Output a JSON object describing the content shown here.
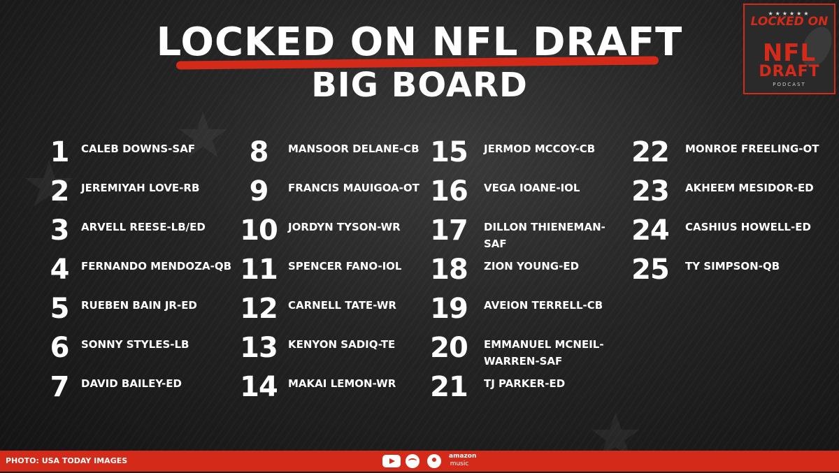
{
  "header": {
    "title_line1": "LOCKED ON NFL DRAFT",
    "title_line2": "BIG BOARD"
  },
  "logo": {
    "stars": "★★★★★★",
    "locked": "LOCKED ON",
    "nfl": "NFL",
    "draft": "DRAFT",
    "podcast": "PODCAST"
  },
  "board": [
    {
      "rank": "1",
      "name": "CALEB DOWNS-SAF"
    },
    {
      "rank": "2",
      "name": "JEREMIYAH LOVE-RB"
    },
    {
      "rank": "3",
      "name": "ARVELL REESE-LB/ED"
    },
    {
      "rank": "4",
      "name": "FERNANDO MENDOZA-QB"
    },
    {
      "rank": "5",
      "name": "RUEBEN BAIN JR-ED"
    },
    {
      "rank": "6",
      "name": "SONNY STYLES-LB"
    },
    {
      "rank": "7",
      "name": "DAVID BAILEY-ED"
    },
    {
      "rank": "8",
      "name": "MANSOOR DELANE-CB"
    },
    {
      "rank": "9",
      "name": "FRANCIS MAUIGOA-OT"
    },
    {
      "rank": "10",
      "name": "JORDYN TYSON-WR"
    },
    {
      "rank": "11",
      "name": "SPENCER FANO-IOL"
    },
    {
      "rank": "12",
      "name": "CARNELL TATE-WR"
    },
    {
      "rank": "13",
      "name": "KENYON SADIQ-TE"
    },
    {
      "rank": "14",
      "name": "MAKAI LEMON-WR"
    },
    {
      "rank": "15",
      "name": "JERMOD MCCOY-CB"
    },
    {
      "rank": "16",
      "name": "VEGA IOANE-IOL"
    },
    {
      "rank": "17",
      "name": "DILLON THIENEMAN-SAF"
    },
    {
      "rank": "18",
      "name": "ZION YOUNG-ED"
    },
    {
      "rank": "19",
      "name": "AVEION TERRELL-CB"
    },
    {
      "rank": "20",
      "name": "EMMANUEL MCNEIL-WARREN-SAF"
    },
    {
      "rank": "21",
      "name": "TJ PARKER-ED"
    },
    {
      "rank": "22",
      "name": "MONROE FREELING-OT"
    },
    {
      "rank": "23",
      "name": "AKHEEM MESIDOR-ED"
    },
    {
      "rank": "24",
      "name": "CASHIUS HOWELL-ED"
    },
    {
      "rank": "25",
      "name": "TY SIMPSON-QB"
    }
  ],
  "footer": {
    "photo_credit": "PHOTO: USA TODAY IMAGES",
    "platform_icons": [
      "youtube-icon",
      "spotify-icon",
      "apple-podcasts-icon",
      "amazon-music-icon"
    ],
    "amazon_label_top": "amazon",
    "amazon_label_bottom": "music"
  },
  "colors": {
    "accent": "#d42a1a",
    "background": "#1c1c1c",
    "text": "#ffffff"
  }
}
